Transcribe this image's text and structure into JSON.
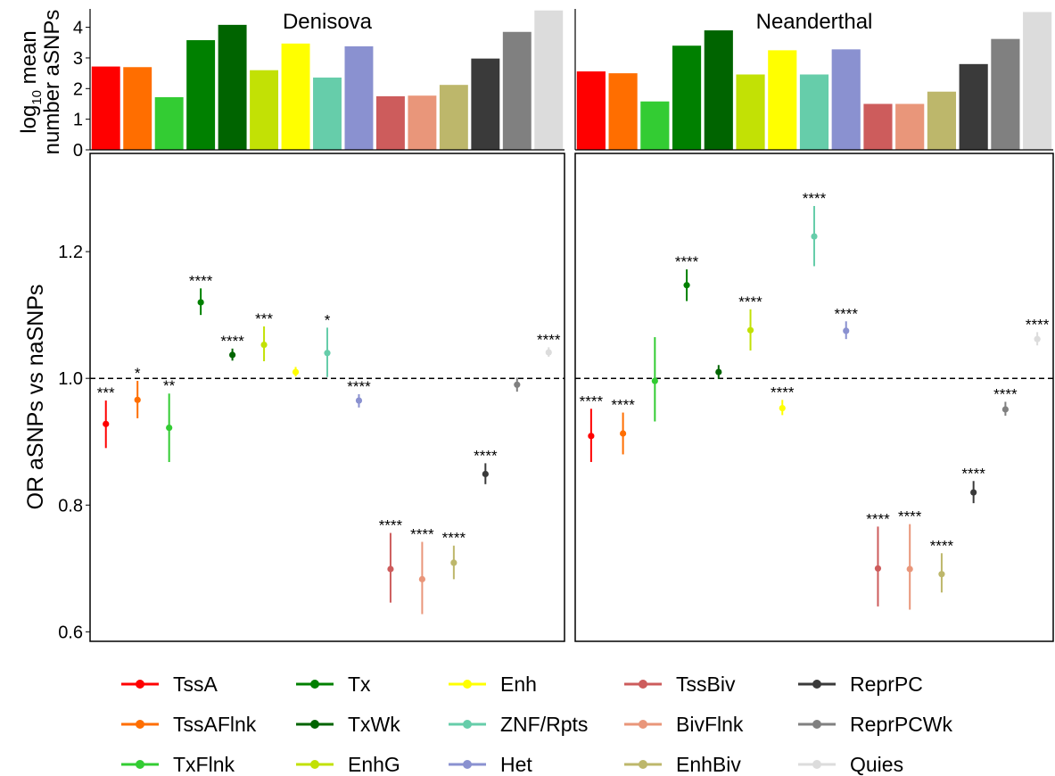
{
  "chart_data": {
    "type": "scatter",
    "description_panels": [
      "Denisova",
      "Neanderthal"
    ],
    "bar_ylabel_line1": "log",
    "bar_ylabel_sub": "10",
    "bar_ylabel_line1_rest": " mean",
    "bar_ylabel_line2": "number aSNPs",
    "ylabel": "OR aSNPs vs naSNPs",
    "bar_ylim": [
      0,
      4.6
    ],
    "bar_ticks": [
      "0",
      "1",
      "2",
      "3",
      "4"
    ],
    "ylim": [
      0.585,
      1.355
    ],
    "y_ticks": [
      "0.6",
      "0.8",
      "1.0",
      "1.2"
    ],
    "reference_line": 1.0,
    "categories": [
      "TssA",
      "TssAFlnk",
      "TxFlnk",
      "Tx",
      "TxWk",
      "EnhG",
      "Enh",
      "ZNF/Rpts",
      "Het",
      "TssBiv",
      "BivFlnk",
      "EnhBiv",
      "ReprPC",
      "ReprPCWk",
      "Quies"
    ],
    "colors": [
      "#ff0000",
      "#ff6e00",
      "#33cc33",
      "#008000",
      "#006400",
      "#c2e105",
      "#ffff00",
      "#66cdaa",
      "#8a91d0",
      "#cd5c5c",
      "#e9967a",
      "#bdb76b",
      "#3a3a3a",
      "#808080",
      "#dcdcdc"
    ],
    "legend_rows": [
      [
        "TssA",
        "Tx",
        "Enh",
        "TssBiv",
        "ReprPC"
      ],
      [
        "TssAFlnk",
        "TxWk",
        "ZNF/Rpts",
        "BivFlnk",
        "ReprPCWk"
      ],
      [
        "TxFlnk",
        "EnhG",
        "Het",
        "EnhBiv",
        "Quies"
      ]
    ],
    "panels": [
      {
        "name": "Denisova",
        "bar_values": [
          2.72,
          2.7,
          1.72,
          3.58,
          4.08,
          2.6,
          3.47,
          2.36,
          3.38,
          1.75,
          1.77,
          2.12,
          2.98,
          3.85,
          4.55
        ],
        "or": [
          0.928,
          0.966,
          0.922,
          1.12,
          1.037,
          1.053,
          1.01,
          1.04,
          0.965,
          0.699,
          0.683,
          0.709,
          0.849,
          0.99,
          1.041
        ],
        "ci_low": [
          0.89,
          0.937,
          0.868,
          1.1,
          1.028,
          1.027,
          1.003,
          1.002,
          0.954,
          0.646,
          0.628,
          0.683,
          0.833,
          0.979,
          1.034
        ],
        "ci_high": [
          0.965,
          0.996,
          0.976,
          1.142,
          1.047,
          1.082,
          1.018,
          1.08,
          0.975,
          0.756,
          0.742,
          0.736,
          0.866,
          1.001,
          1.049
        ],
        "sig": [
          "***",
          "*",
          "**",
          "****",
          "****",
          "***",
          "",
          "*",
          "****",
          "****",
          "****",
          "****",
          "****",
          "",
          "****"
        ]
      },
      {
        "name": "Neanderthal",
        "bar_values": [
          2.56,
          2.5,
          1.58,
          3.4,
          3.9,
          2.46,
          3.25,
          2.46,
          3.28,
          1.5,
          1.5,
          1.9,
          2.8,
          3.62,
          4.5
        ],
        "or": [
          0.909,
          0.913,
          0.996,
          1.147,
          1.01,
          1.076,
          0.953,
          1.224,
          1.075,
          0.7,
          0.699,
          0.691,
          0.82,
          0.951,
          1.062
        ],
        "ci_low": [
          0.868,
          0.88,
          0.932,
          1.122,
          0.999,
          1.044,
          0.942,
          1.177,
          1.062,
          0.64,
          0.635,
          0.662,
          0.803,
          0.941,
          1.052
        ],
        "ci_high": [
          0.952,
          0.946,
          1.065,
          1.172,
          1.021,
          1.109,
          0.966,
          1.272,
          1.09,
          0.766,
          0.77,
          0.724,
          0.838,
          0.963,
          1.073
        ],
        "sig": [
          "****",
          "****",
          "",
          "****",
          "",
          "****",
          "****",
          "****",
          "****",
          "****",
          "****",
          "****",
          "****",
          "****",
          "****"
        ]
      }
    ]
  }
}
